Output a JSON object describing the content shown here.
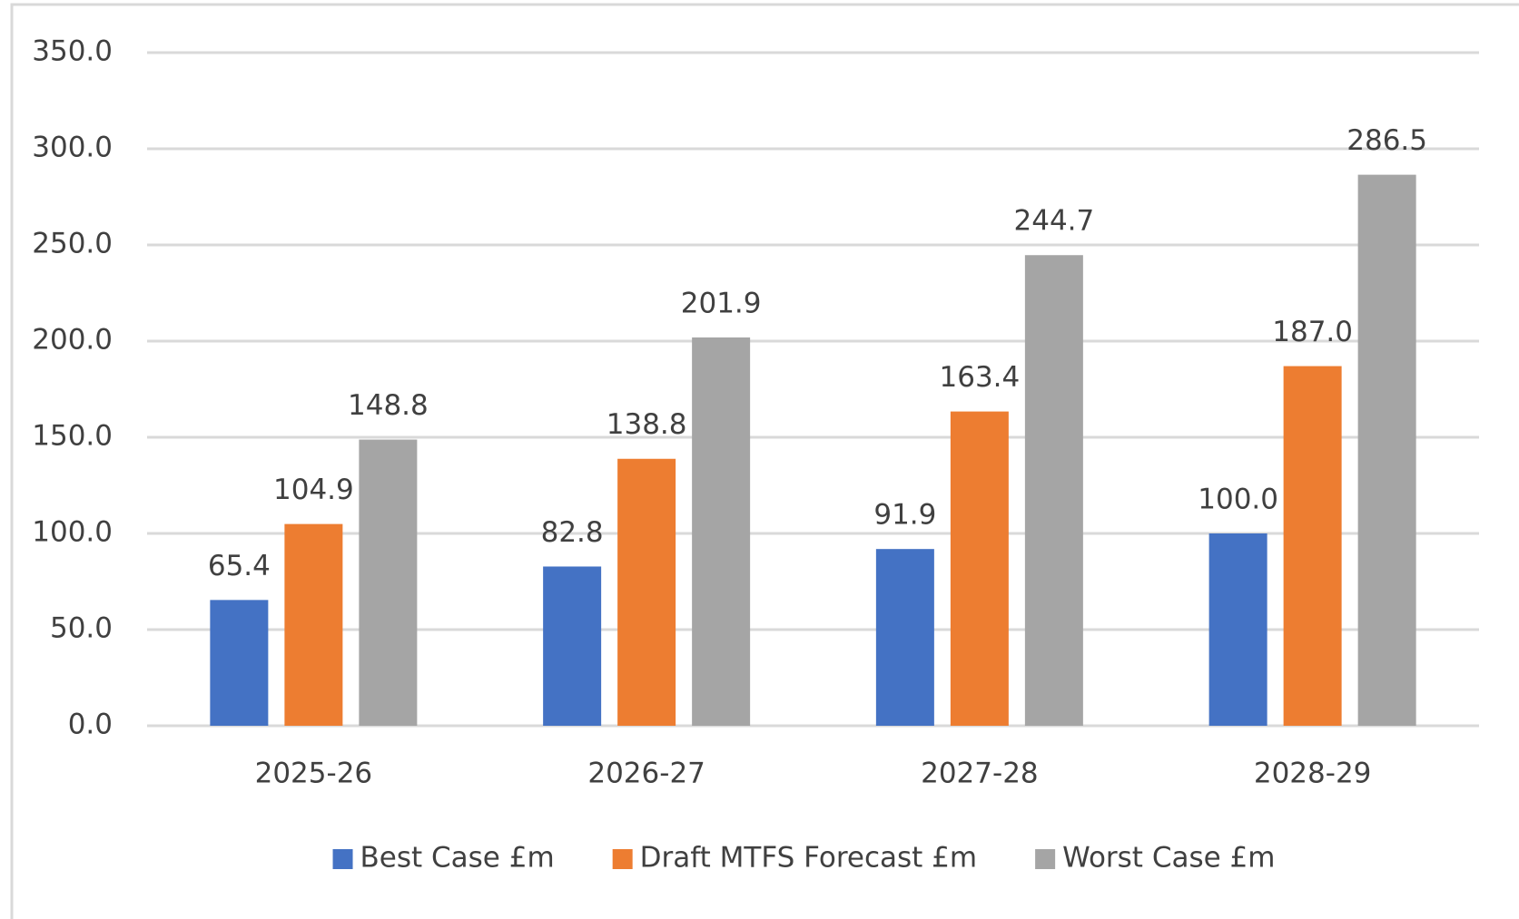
{
  "chart_data": {
    "type": "bar",
    "categories": [
      "2025-26",
      "2026-27",
      "2027-28",
      "2028-29"
    ],
    "series": [
      {
        "name": "Best Case £m",
        "color": "#4472c4",
        "values": [
          65.4,
          82.8,
          91.9,
          100.0
        ],
        "value_labels": [
          "65.4",
          "82.8",
          "91.9",
          "100.0"
        ]
      },
      {
        "name": "Draft MTFS Forecast £m",
        "color": "#ed7d31",
        "values": [
          104.9,
          138.8,
          163.4,
          187.0
        ],
        "value_labels": [
          "104.9",
          "138.8",
          "163.4",
          "187.0"
        ]
      },
      {
        "name": "Worst Case £m",
        "color": "#a5a5a5",
        "values": [
          148.8,
          201.9,
          244.7,
          286.5
        ],
        "value_labels": [
          "148.8",
          "201.9",
          "244.7",
          "286.5"
        ]
      }
    ],
    "ylim": [
      0,
      350
    ],
    "yticks": [
      {
        "value": 0,
        "label": "0.0"
      },
      {
        "value": 50,
        "label": "50.0"
      },
      {
        "value": 100,
        "label": "100.0"
      },
      {
        "value": 150,
        "label": "150.0"
      },
      {
        "value": 200,
        "label": "200.0"
      },
      {
        "value": 250,
        "label": "250.0"
      },
      {
        "value": 300,
        "label": "300.0"
      },
      {
        "value": 350,
        "label": "350.0"
      }
    ],
    "grid": true,
    "legend": "bottom"
  }
}
